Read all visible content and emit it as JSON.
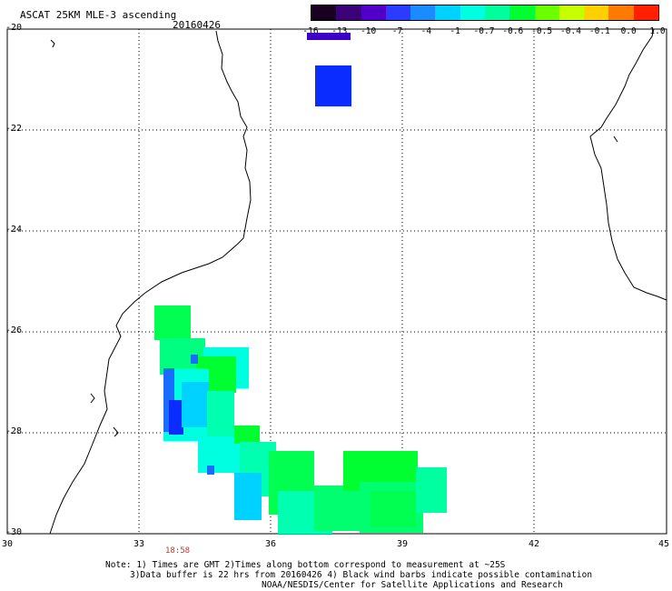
{
  "title": "ASCAT 25KM MLE-3 ascending",
  "date": "20160426",
  "colorbar": {
    "labels": [
      "-16",
      "-13",
      "-10",
      "-7",
      "-4",
      "-1",
      "-0.7",
      "-0.6",
      "-0.5",
      "-0.4",
      "-0.1",
      "0.0",
      "1.0"
    ],
    "colors": [
      "#1a0020",
      "#3c0078",
      "#5000c8",
      "#2a3cff",
      "#1a8cff",
      "#00d2ff",
      "#00ffe0",
      "#00ff9c",
      "#00ff30",
      "#6cff00",
      "#c8ff00",
      "#ffd000",
      "#ff7a00",
      "#ff2000"
    ]
  },
  "y_axis": {
    "labels": [
      "-20",
      "-22",
      "-24",
      "-26",
      "-28",
      "-30"
    ]
  },
  "x_axis": {
    "labels": [
      "30",
      "33",
      "36",
      "39",
      "42",
      "45"
    ]
  },
  "time_label": "18:58",
  "notes": [
    "Note: 1) Times are GMT 2)Times along bottom correspond to measurement at ~25S",
    "3)Data buffer is 22 hrs from 20160426 4) Black wind barbs indicate possible contamination",
    "NOAA/NESDIS/Center for Satellite Applications and Research"
  ]
}
